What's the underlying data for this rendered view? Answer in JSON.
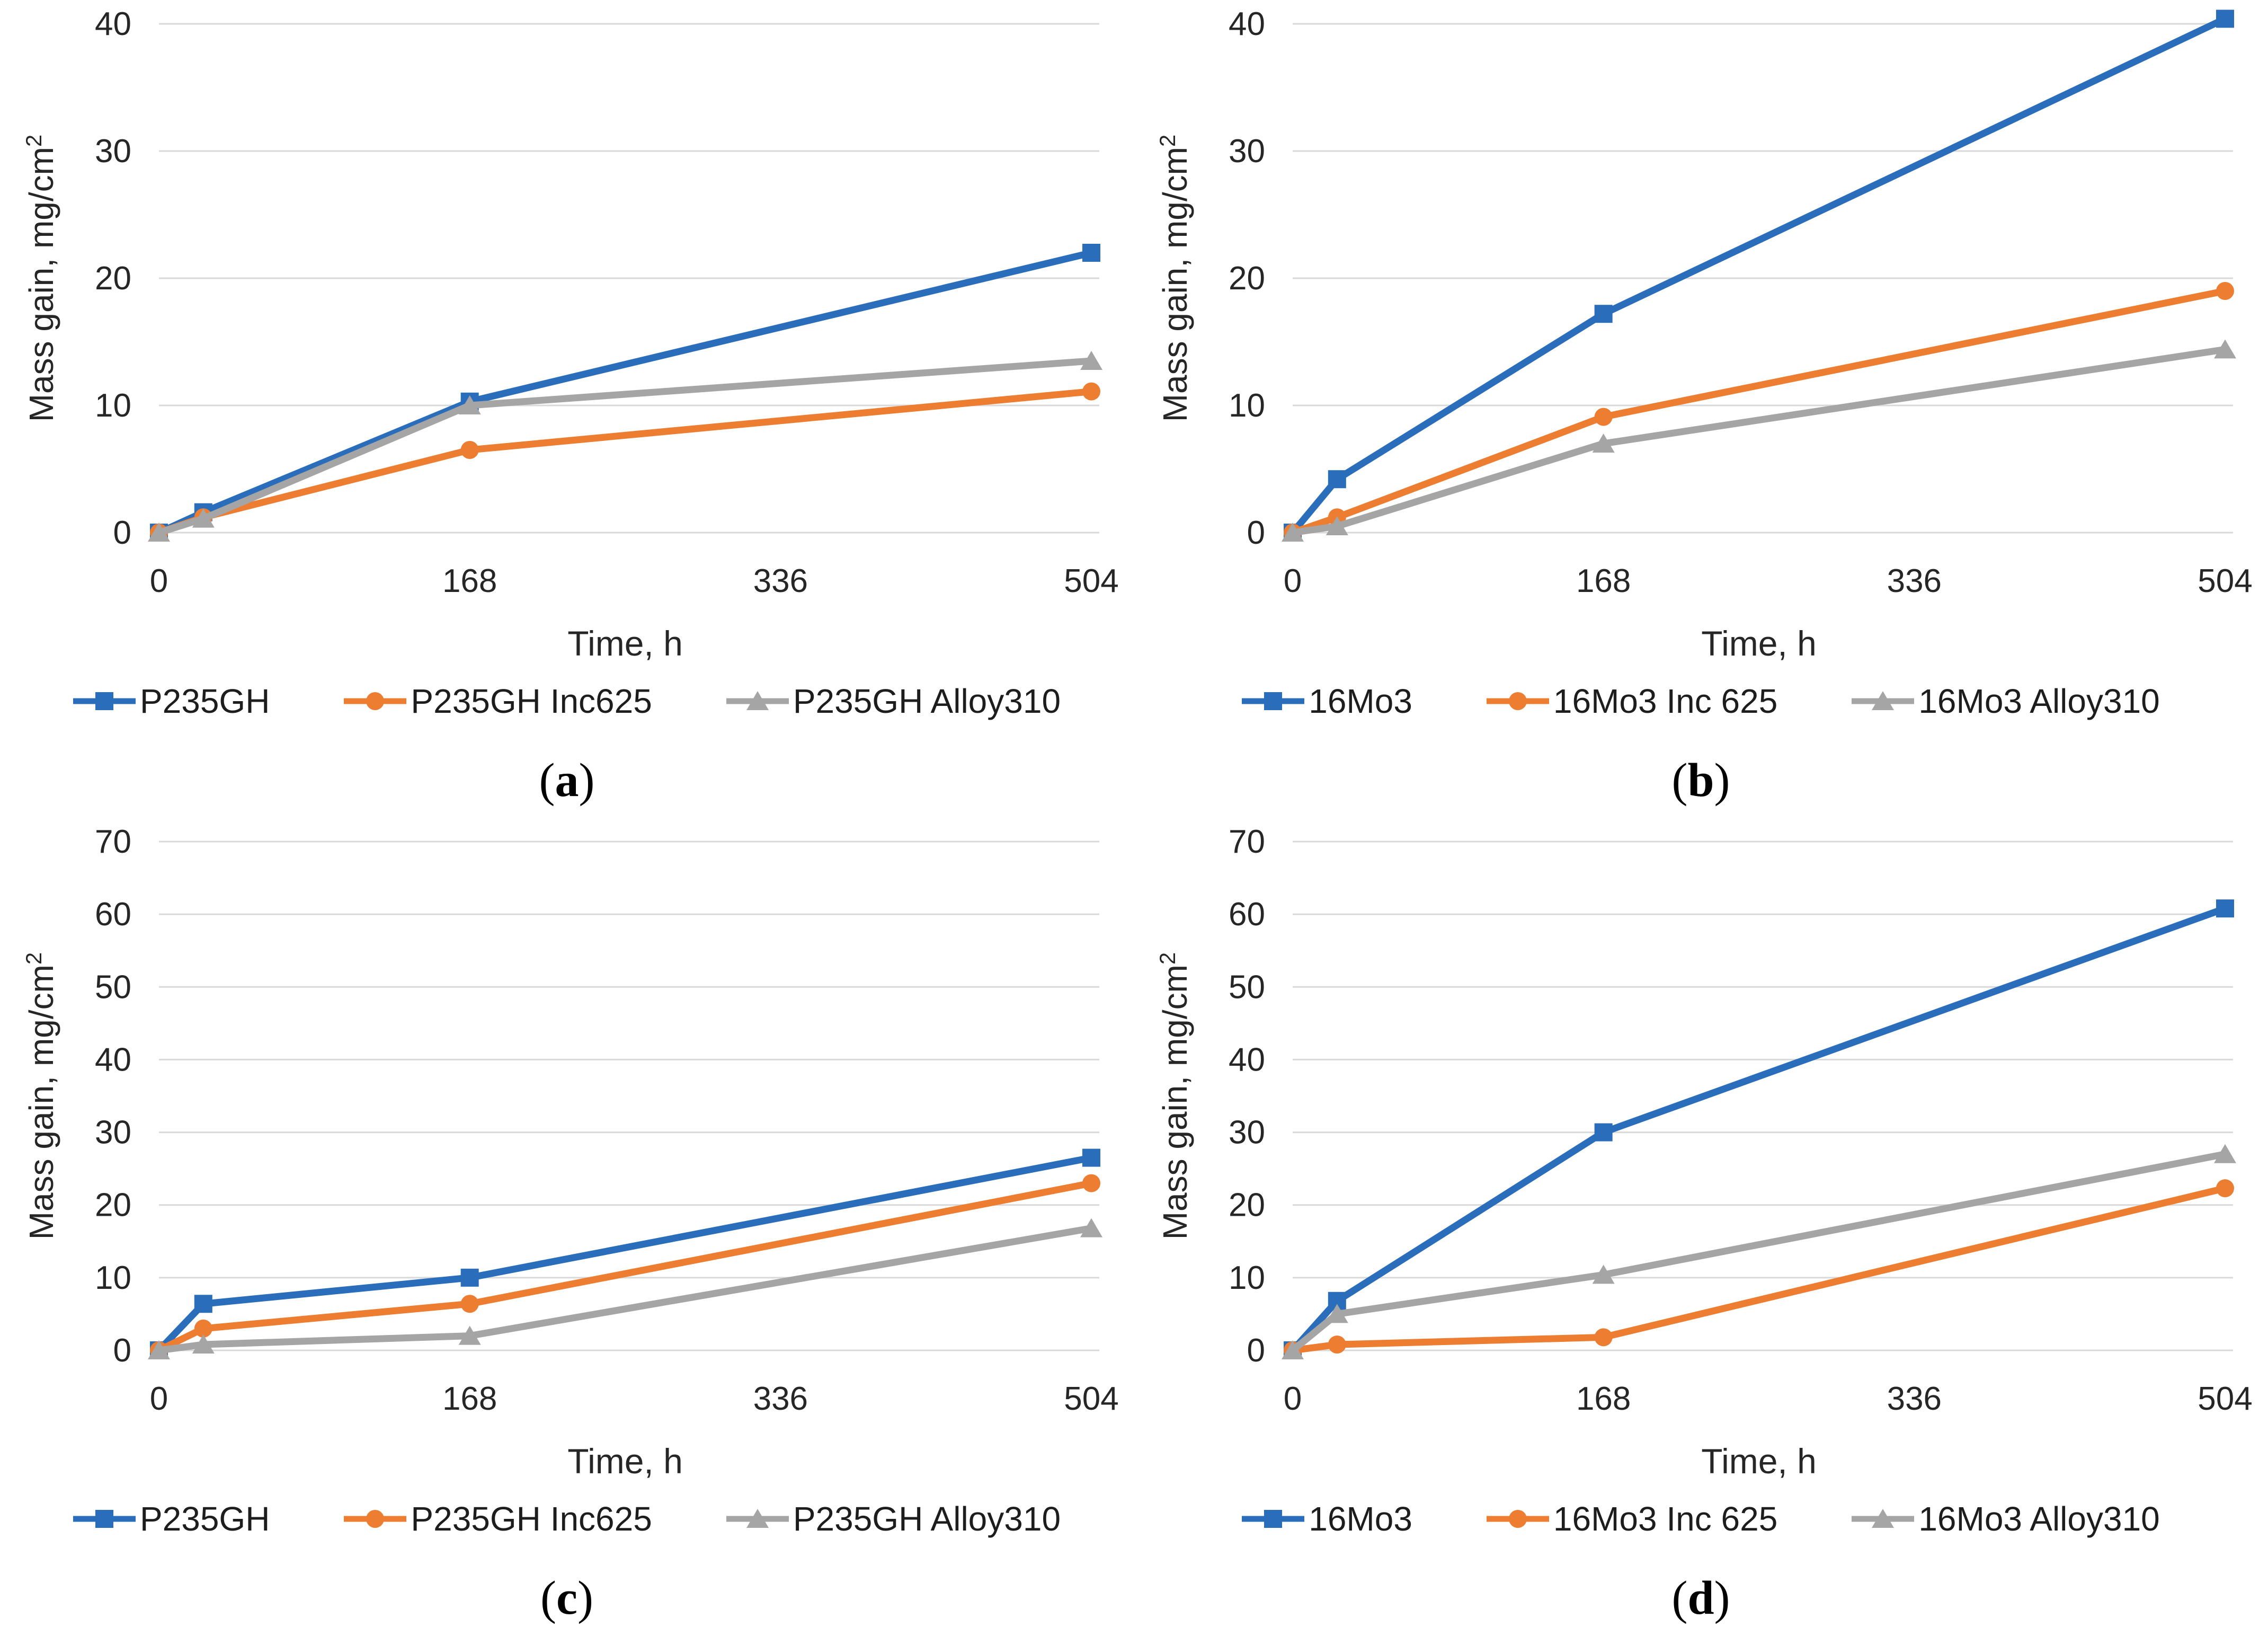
{
  "figure": {
    "background": "#ffffff"
  },
  "colors": {
    "blue": "#2A6EBB",
    "orange": "#ED7D31",
    "gray": "#A5A5A5",
    "gridline": "#D9D9D9",
    "text": "#262626"
  },
  "chart_data": [
    {
      "panel": "a",
      "type": "line",
      "xlabel": "Time, h",
      "ylabel_main": "Mass gain, mg/cm",
      "ylabel_sup": "2",
      "x": [
        0,
        24,
        168,
        504
      ],
      "xticks": [
        0,
        168,
        336,
        504
      ],
      "ylim": [
        0,
        40
      ],
      "yticks": [
        0,
        10,
        20,
        30,
        40
      ],
      "grid": "horizontal",
      "legend_position": "bottom",
      "series": [
        {
          "name": "P235GH",
          "marker": "square",
          "color_key": "blue",
          "values": [
            0,
            1.6,
            10.3,
            22
          ]
        },
        {
          "name": "P235GH Inc625",
          "marker": "circle",
          "color_key": "orange",
          "values": [
            0,
            1.2,
            6.5,
            11.1
          ]
        },
        {
          "name": "P235GH Alloy310",
          "marker": "triangle",
          "color_key": "gray",
          "values": [
            0,
            1.1,
            10,
            13.5
          ]
        }
      ],
      "caption": {
        "open": "(",
        "letter": "a",
        "close": ")"
      }
    },
    {
      "panel": "b",
      "type": "line",
      "xlabel": "Time, h",
      "ylabel_main": "Mass gain, mg/cm",
      "ylabel_sup": "2",
      "x": [
        0,
        24,
        168,
        504
      ],
      "xticks": [
        0,
        168,
        336,
        504
      ],
      "ylim": [
        0,
        40
      ],
      "yticks": [
        0,
        10,
        20,
        30,
        40
      ],
      "grid": "horizontal",
      "legend_position": "bottom",
      "series": [
        {
          "name": "16Mo3",
          "marker": "square",
          "color_key": "blue",
          "values": [
            0,
            4.2,
            17.2,
            40.4
          ]
        },
        {
          "name": "16Mo3 Inc 625",
          "marker": "circle",
          "color_key": "orange",
          "values": [
            0,
            1.2,
            9.1,
            19
          ]
        },
        {
          "name": "16Mo3 Alloy310",
          "marker": "triangle",
          "color_key": "gray",
          "values": [
            0,
            0.5,
            7,
            14.4
          ]
        }
      ],
      "caption": {
        "open": "(",
        "letter": "b",
        "close": ")"
      }
    },
    {
      "panel": "c",
      "type": "line",
      "xlabel": "Time, h",
      "ylabel_main": "Mass gain, mg/cm",
      "ylabel_sup": "2",
      "x": [
        0,
        24,
        168,
        504
      ],
      "xticks": [
        0,
        168,
        336,
        504
      ],
      "ylim": [
        0,
        70
      ],
      "yticks": [
        0,
        10,
        20,
        30,
        40,
        50,
        60,
        70
      ],
      "grid": "horizontal",
      "legend_position": "bottom",
      "series": [
        {
          "name": "P235GH",
          "marker": "square",
          "color_key": "blue",
          "values": [
            0,
            6.4,
            10,
            26.5
          ]
        },
        {
          "name": "P235GH Inc625",
          "marker": "circle",
          "color_key": "orange",
          "values": [
            0,
            3,
            6.4,
            23
          ]
        },
        {
          "name": "P235GH Alloy310",
          "marker": "triangle",
          "color_key": "gray",
          "values": [
            0,
            0.8,
            2,
            16.8
          ]
        }
      ],
      "caption": {
        "open": "(",
        "letter": "c",
        "close": ")"
      }
    },
    {
      "panel": "d",
      "type": "line",
      "xlabel": "Time, h",
      "ylabel_main": "Mass gain, mg/cm",
      "ylabel_sup": "2",
      "x": [
        0,
        24,
        168,
        504
      ],
      "xticks": [
        0,
        168,
        336,
        504
      ],
      "ylim": [
        0,
        70
      ],
      "yticks": [
        0,
        10,
        20,
        30,
        40,
        50,
        60,
        70
      ],
      "grid": "horizontal",
      "legend_position": "bottom",
      "series": [
        {
          "name": "16Mo3",
          "marker": "square",
          "color_key": "blue",
          "values": [
            0,
            6.8,
            30,
            60.8
          ]
        },
        {
          "name": "16Mo3 Inc 625",
          "marker": "circle",
          "color_key": "orange",
          "values": [
            0,
            0.8,
            1.8,
            22.3
          ]
        },
        {
          "name": "16Mo3 Alloy310",
          "marker": "triangle",
          "color_key": "gray",
          "values": [
            0,
            5,
            10.4,
            27
          ]
        }
      ],
      "caption": {
        "open": "(",
        "letter": "d",
        "close": ")"
      }
    }
  ]
}
